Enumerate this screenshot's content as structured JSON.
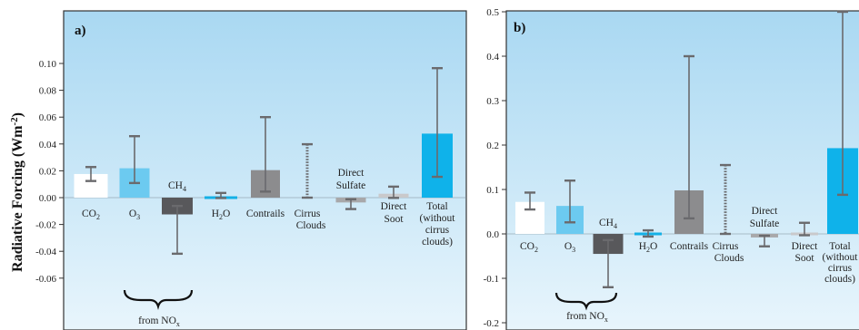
{
  "shared_ylabel": "Radiative Forcing (Wm",
  "shared_ylabel_sup": "-2",
  "shared_ylabel_end": ")",
  "colors": {
    "bg_top": "#a9d8f2",
    "bg_bottom": "#e8f5fc",
    "co2": "#ffffff",
    "o3": "#6ccaf0",
    "ch4": "#58585b",
    "h2o": "#14b0e6",
    "contrails": "#8c8c8e",
    "sulfate": "#a8a8aa",
    "soot": "#c9c9cb",
    "total": "#0fb2ea",
    "errorbar": "#6a6a6d"
  },
  "chart_data": [
    {
      "type": "bar",
      "panel_label": "a)",
      "ylabel": "Radiative Forcing (Wm-2)",
      "ylim": [
        -0.07,
        0.1
      ],
      "yticks": [
        "0.10",
        "0.08",
        "0.06",
        "0.04",
        "0.02",
        "0.00",
        "-0.02",
        "-0.04",
        "-0.06"
      ],
      "categories": [
        "CO2",
        "O3",
        "CH4",
        "H2O",
        "Contrails",
        "Cirrus Clouds",
        "Direct Sulfate",
        "Direct Soot",
        "Total (without cirrus clouds)"
      ],
      "values": [
        0.0176,
        0.0219,
        -0.0125,
        0.0006,
        0.0205,
        null,
        -0.0036,
        0.0029,
        0.0477
      ],
      "error_low": [
        0.0124,
        0.0109,
        -0.0418,
        -0.0003,
        0.0045,
        0.0,
        -0.0085,
        -0.0002,
        0.0155
      ],
      "error_high": [
        0.0228,
        0.0458,
        -0.0062,
        0.0035,
        0.06,
        0.0398,
        -0.0012,
        0.0082,
        0.0965
      ],
      "dotted_errorbar": [
        "Cirrus Clouds"
      ],
      "annotation": "from NOx"
    },
    {
      "type": "bar",
      "panel_label": "b)",
      "ylim": [
        -0.22,
        0.52
      ],
      "yticks": [
        "0.5",
        "0.4",
        "0.3",
        "0.2",
        "0.1",
        "0.0",
        "-0.1",
        "-0.2"
      ],
      "categories": [
        "CO2",
        "O3",
        "CH4",
        "H2O",
        "Contrails",
        "Cirrus Clouds",
        "Direct Sulfate",
        "Direct Soot",
        "Total (without cirrus clouds)"
      ],
      "values": [
        0.072,
        0.063,
        -0.045,
        0.0,
        0.098,
        null,
        -0.008,
        0.005,
        0.193
      ],
      "error_low": [
        0.055,
        0.026,
        -0.12,
        -0.006,
        0.035,
        0.0,
        -0.028,
        -0.003,
        0.088
      ],
      "error_high": [
        0.093,
        0.12,
        -0.014,
        0.008,
        0.4,
        0.155,
        -0.004,
        0.025,
        0.5
      ],
      "dotted_errorbar": [
        "Cirrus Clouds"
      ],
      "annotation": "from NOx"
    }
  ],
  "labels": {
    "co2": [
      "CO",
      "2"
    ],
    "o3": [
      "O",
      "3"
    ],
    "ch4": [
      "CH",
      "4"
    ],
    "h2o": [
      "H",
      "2",
      "O"
    ],
    "contrails": "Contrails",
    "cirrus_a": [
      "Cirrus",
      "Clouds"
    ],
    "sulfate": [
      "Direct",
      "Sulfate"
    ],
    "soot_a": [
      "Direct",
      "Soot"
    ],
    "total_a": [
      "Total",
      "(without",
      "cirrus",
      "clouds)"
    ],
    "cirrus_b": [
      "Cirrus",
      "Clouds"
    ],
    "soot_b": [
      "Direct",
      "Soot"
    ],
    "total_b": [
      "Total",
      "(without",
      "cirrus",
      "clouds)"
    ],
    "from_nox": [
      "from NO",
      "x"
    ]
  }
}
